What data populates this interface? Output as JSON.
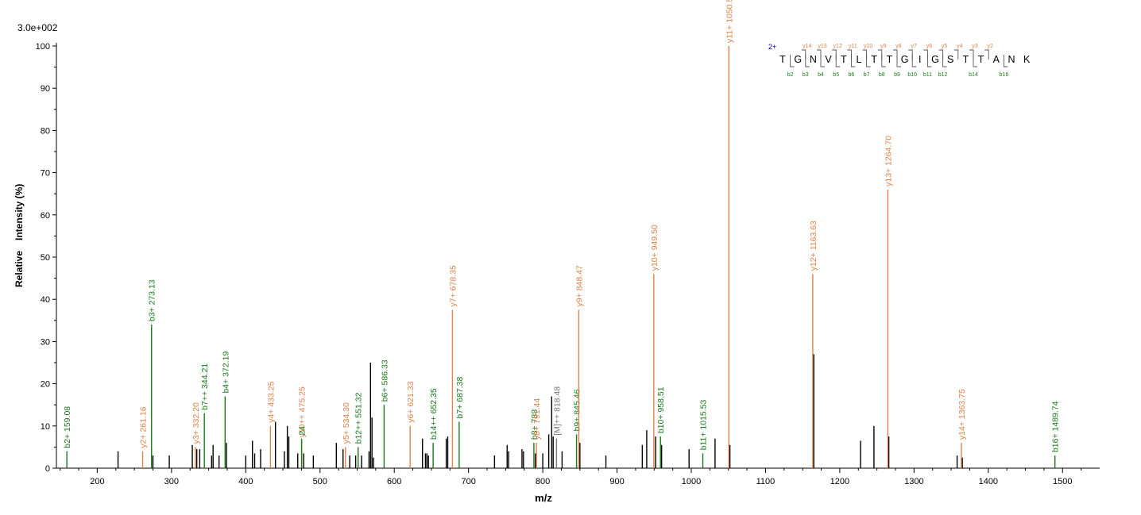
{
  "chart_data": {
    "type": "bar",
    "scale_label": "3.0e+002",
    "xlabel": "m/z",
    "ylabel_parts": [
      "Relative",
      "Intensity (%)"
    ],
    "xlim": [
      145,
      1550
    ],
    "ylim": [
      0,
      100
    ],
    "xticks": [
      200,
      300,
      400,
      500,
      600,
      700,
      800,
      900,
      1000,
      1100,
      1200,
      1300,
      1400,
      1500
    ],
    "yticks": [
      0,
      10,
      20,
      30,
      40,
      50,
      60,
      70,
      80,
      90,
      100
    ],
    "colors": {
      "b": "#1a7a1a",
      "y": "#e0824a",
      "other": "#7a7a7a",
      "unlabeled": "#000000"
    },
    "annotated_peaks": [
      {
        "mz": 159.08,
        "rel": 4,
        "ion": "b",
        "label": "b2+ 159.08"
      },
      {
        "mz": 261.16,
        "rel": 4,
        "ion": "y",
        "label": "y2+ 261.16"
      },
      {
        "mz": 273.13,
        "rel": 34,
        "ion": "b",
        "label": "b3+ 273.13"
      },
      {
        "mz": 332.2,
        "rel": 5,
        "ion": "y",
        "label": "y3+ 332.20"
      },
      {
        "mz": 344.21,
        "rel": 13,
        "ion": "b",
        "label": "b7++ 344.21"
      },
      {
        "mz": 372.19,
        "rel": 17,
        "ion": "b",
        "label": "b4+ 372.19"
      },
      {
        "mz": 433.25,
        "rel": 10,
        "ion": "y",
        "label": "y4+ 433.25"
      },
      {
        "mz": 475.25,
        "rel": 6.5,
        "ion": "y",
        "label": "y10++ 475.25"
      },
      {
        "mz": 475.24,
        "rel": 7,
        "ion": "b",
        "label": "24"
      },
      {
        "mz": 534.3,
        "rel": 5,
        "ion": "y",
        "label": "y5+ 534.30"
      },
      {
        "mz": 551.32,
        "rel": 5,
        "ion": "b",
        "label": "b12++ 551.32"
      },
      {
        "mz": 586.33,
        "rel": 15,
        "ion": "b",
        "label": "b6+ 586.33"
      },
      {
        "mz": 621.33,
        "rel": 10,
        "ion": "y",
        "label": "y6+ 621.33"
      },
      {
        "mz": 652.35,
        "rel": 6,
        "ion": "b",
        "label": "b14++ 652.35"
      },
      {
        "mz": 678.35,
        "rel": 37.5,
        "ion": "y",
        "label": "y7+ 678.35"
      },
      {
        "mz": 687.38,
        "rel": 11,
        "ion": "b",
        "label": "b7+ 687.38"
      },
      {
        "mz": 788,
        "rel": 6,
        "ion": "b",
        "label": "b8+ 788"
      },
      {
        "mz": 791.44,
        "rel": 6,
        "ion": "y",
        "label": "y8+ 791.44"
      },
      {
        "mz": 818.48,
        "rel": 7,
        "ion": "other",
        "label": "[M]++ 818.48"
      },
      {
        "mz": 845.46,
        "rel": 8,
        "ion": "b",
        "label": "b9+ 845.46"
      },
      {
        "mz": 848.47,
        "rel": 37.5,
        "ion": "y",
        "label": "y9+ 848.47"
      },
      {
        "mz": 949.5,
        "rel": 46,
        "ion": "y",
        "label": "y10+ 949.50"
      },
      {
        "mz": 958.51,
        "rel": 7.5,
        "ion": "b",
        "label": "b10+ 958.51"
      },
      {
        "mz": 1015.53,
        "rel": 3.5,
        "ion": "b",
        "label": "b11+ 1015.53"
      },
      {
        "mz": 1050.57,
        "rel": 100,
        "ion": "y",
        "label": "y11+ 1050.57"
      },
      {
        "mz": 1163.63,
        "rel": 46,
        "ion": "y",
        "label": "y12+ 1163.63"
      },
      {
        "mz": 1264.7,
        "rel": 66,
        "ion": "y",
        "label": "y13+ 1264.70"
      },
      {
        "mz": 1363.75,
        "rel": 6,
        "ion": "y",
        "label": "y14+ 1363.75"
      },
      {
        "mz": 1489.74,
        "rel": 3,
        "ion": "b",
        "label": "b16+ 1489.74"
      }
    ],
    "unlabeled_peaks": [
      [
        228,
        4
      ],
      [
        275,
        3
      ],
      [
        297,
        3
      ],
      [
        328,
        5.5
      ],
      [
        334,
        4.5
      ],
      [
        338,
        4.5
      ],
      [
        354,
        3
      ],
      [
        356,
        5.5
      ],
      [
        364,
        3
      ],
      [
        374,
        6
      ],
      [
        400,
        3
      ],
      [
        409,
        6.5
      ],
      [
        412,
        3.5
      ],
      [
        420,
        4.5
      ],
      [
        440,
        11
      ],
      [
        452,
        4
      ],
      [
        456,
        10
      ],
      [
        458,
        7.5
      ],
      [
        470,
        3.5
      ],
      [
        478,
        3.5
      ],
      [
        491,
        3
      ],
      [
        522,
        6
      ],
      [
        531,
        4.5
      ],
      [
        540,
        3
      ],
      [
        548,
        3
      ],
      [
        556,
        3
      ],
      [
        566,
        4
      ],
      [
        568,
        25
      ],
      [
        570,
        12
      ],
      [
        572,
        2.5
      ],
      [
        638,
        7
      ],
      [
        642,
        3.5
      ],
      [
        644,
        3.5
      ],
      [
        646,
        3
      ],
      [
        670,
        7
      ],
      [
        672,
        7.5
      ],
      [
        735,
        3
      ],
      [
        752,
        5.5
      ],
      [
        754,
        4
      ],
      [
        772,
        4.5
      ],
      [
        774,
        4
      ],
      [
        790,
        3.5
      ],
      [
        800,
        3.5
      ],
      [
        808,
        8
      ],
      [
        812,
        17
      ],
      [
        814,
        7.5
      ],
      [
        826,
        4
      ],
      [
        850,
        6
      ],
      [
        885,
        3
      ],
      [
        934,
        5.5
      ],
      [
        940,
        9
      ],
      [
        952,
        7.5
      ],
      [
        960,
        5.5
      ],
      [
        997,
        4.5
      ],
      [
        1032,
        7
      ],
      [
        1052,
        5.5
      ],
      [
        1165,
        27
      ],
      [
        1228,
        6.5
      ],
      [
        1246,
        10
      ],
      [
        1266,
        7.5
      ],
      [
        1358,
        3
      ],
      [
        1365,
        2.5
      ]
    ]
  },
  "sequence": {
    "charge": "2+",
    "residues": [
      "T",
      "G",
      "N",
      "V",
      "T",
      "L",
      "T",
      "T",
      "G",
      "I",
      "G",
      "S",
      "T",
      "T",
      "A",
      "N",
      "K"
    ],
    "y_labels": [
      {
        "after": 2,
        "text": "y14"
      },
      {
        "after": 3,
        "text": "y13"
      },
      {
        "after": 4,
        "text": "y12"
      },
      {
        "after": 5,
        "text": "y11"
      },
      {
        "after": 6,
        "text": "y10"
      },
      {
        "after": 7,
        "text": "y9"
      },
      {
        "after": 8,
        "text": "y8"
      },
      {
        "after": 9,
        "text": "y7"
      },
      {
        "after": 10,
        "text": "y6"
      },
      {
        "after": 11,
        "text": "y5"
      },
      {
        "after": 12,
        "text": "y4"
      },
      {
        "after": 13,
        "text": "y3"
      },
      {
        "after": 14,
        "text": "y2"
      }
    ],
    "b_labels": [
      {
        "after": 1,
        "text": "b2"
      },
      {
        "after": 2,
        "text": "b3"
      },
      {
        "after": 3,
        "text": "b4"
      },
      {
        "after": 4,
        "text": "b5"
      },
      {
        "after": 5,
        "text": "b6"
      },
      {
        "after": 6,
        "text": "b7"
      },
      {
        "after": 7,
        "text": "b8"
      },
      {
        "after": 8,
        "text": "b9"
      },
      {
        "after": 9,
        "text": "b10"
      },
      {
        "after": 10,
        "text": "b11"
      },
      {
        "after": 11,
        "text": "b12"
      },
      {
        "after": 13,
        "text": "b14"
      },
      {
        "after": 15,
        "text": "b16"
      }
    ]
  }
}
